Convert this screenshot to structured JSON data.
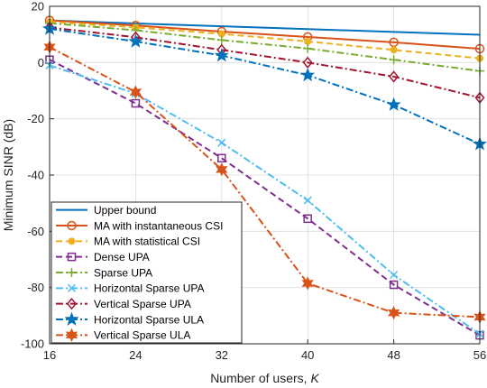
{
  "chart_data": {
    "type": "line",
    "title": "",
    "xlabel": "Number of users,",
    "xlabel_var": "K",
    "ylabel": "Minimum SINR (dB)",
    "x": [
      16,
      24,
      32,
      40,
      48,
      56
    ],
    "xticks": [
      "16",
      "24",
      "32",
      "40",
      "48",
      "56"
    ],
    "yticks": [
      "20",
      "0",
      "-20",
      "-40",
      "-60",
      "-80",
      "-100"
    ],
    "xlim": [
      16,
      56
    ],
    "ylim": [
      -100,
      20
    ],
    "grid": true,
    "legend_position": "bottom-left",
    "series": [
      {
        "name": "Upper bound",
        "color": "#0072BD",
        "dash": "solid",
        "marker": "none",
        "values": [
          15.0,
          13.9,
          12.9,
          11.9,
          10.9,
          9.9
        ]
      },
      {
        "name": "MA with instantaneous CSI",
        "color": "#D95319",
        "dash": "solid",
        "marker": "circle",
        "values": [
          15.0,
          13.2,
          11.0,
          9.1,
          7.2,
          4.9
        ]
      },
      {
        "name": "MA with statistical CSI",
        "color": "#EDB120",
        "dash": "dashed",
        "marker": "dot",
        "values": [
          14.5,
          12.5,
          10.2,
          7.5,
          4.5,
          1.5
        ]
      },
      {
        "name": "Dense UPA",
        "color": "#7E2F8E",
        "dash": "dashed",
        "marker": "square",
        "values": [
          1.0,
          -14.5,
          -34.0,
          -55.5,
          -79.0,
          -97.0
        ]
      },
      {
        "name": "Sparse UPA",
        "color": "#77AC30",
        "dash": "dashdot",
        "marker": "plus",
        "values": [
          14.0,
          11.5,
          8.0,
          5.0,
          1.0,
          -3.0
        ]
      },
      {
        "name": "Horizontal Sparse UPA",
        "color": "#4DBEEE",
        "dash": "dashdot",
        "marker": "x",
        "values": [
          -1.0,
          -11.0,
          -28.5,
          -49.0,
          -75.5,
          -96.5
        ]
      },
      {
        "name": "Vertical Sparse UPA",
        "color": "#A2142F",
        "dash": "dashdot",
        "marker": "diamond",
        "values": [
          12.5,
          9.0,
          4.5,
          0.0,
          -5.0,
          -12.5
        ]
      },
      {
        "name": "Horizontal Sparse ULA",
        "color": "#0072BD",
        "dash": "dashdot",
        "marker": "pentagram",
        "values": [
          12.0,
          7.5,
          2.5,
          -4.5,
          -15.0,
          -29.0
        ]
      },
      {
        "name": "Vertical Sparse ULA",
        "color": "#D95319",
        "dash": "dashdot",
        "marker": "hexagram",
        "values": [
          5.5,
          -10.5,
          -38.0,
          -78.5,
          -89.0,
          -90.5
        ]
      }
    ]
  }
}
